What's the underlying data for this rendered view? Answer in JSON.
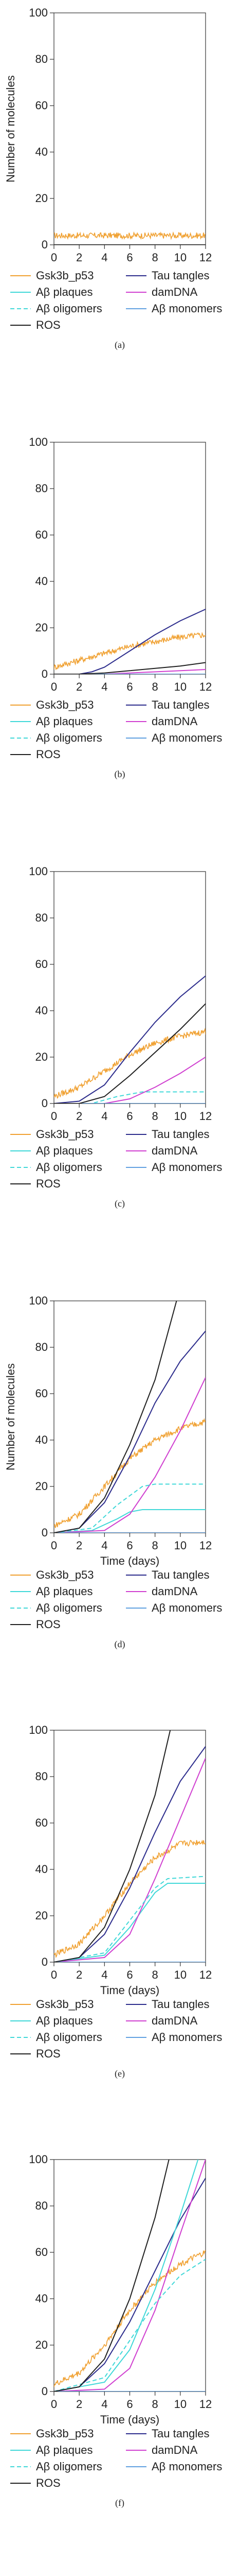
{
  "legend_labels": [
    "Gsk3b_p53",
    "Tau tangles",
    "Aβ plaques",
    "damDNA",
    "Aβ oligomers",
    "Aβ monomers",
    "ROS"
  ],
  "colors": {
    "Gsk3b_p53": "#f0a030",
    "Tau tangles": "#2c2c8c",
    "Aβ plaques": "#40d8d8",
    "damDNA": "#d040d0",
    "Aβ oligomers": "#40d8d8",
    "Aβ monomers": "#60a0e0",
    "ROS": "#202020"
  },
  "chart_data": [
    {
      "type": "line",
      "panel_label": "(a)",
      "ylabel": "Number of molecules",
      "xlabel": "",
      "xlim": [
        0,
        12
      ],
      "ylim": [
        0,
        100
      ],
      "xticks": [
        0,
        2,
        4,
        6,
        8,
        10,
        12
      ],
      "yticks": [
        0,
        20,
        40,
        60,
        80,
        100
      ],
      "series": [
        {
          "name": "Gsk3b_p53",
          "style": "noisy",
          "points": [
            [
              0,
              4
            ],
            [
              12,
              4
            ]
          ]
        },
        {
          "name": "Tau tangles",
          "points": [
            [
              0,
              0
            ],
            [
              12,
              0
            ]
          ]
        },
        {
          "name": "Aβ plaques",
          "points": [
            [
              0,
              0
            ],
            [
              12,
              0
            ]
          ]
        },
        {
          "name": "damDNA",
          "points": [
            [
              0,
              0
            ],
            [
              12,
              0
            ]
          ]
        },
        {
          "name": "Aβ oligomers",
          "dashed": true,
          "points": [
            [
              0,
              0
            ],
            [
              12,
              0
            ]
          ]
        },
        {
          "name": "Aβ monomers",
          "points": [
            [
              0,
              0
            ],
            [
              12,
              0
            ]
          ]
        },
        {
          "name": "ROS",
          "points": [
            [
              0,
              0
            ],
            [
              12,
              0
            ]
          ]
        }
      ]
    },
    {
      "type": "line",
      "panel_label": "(b)",
      "ylabel": "",
      "xlabel": "",
      "xlim": [
        0,
        12
      ],
      "ylim": [
        0,
        100
      ],
      "xticks": [
        0,
        2,
        4,
        6,
        8,
        10,
        12
      ],
      "yticks": [
        0,
        20,
        40,
        60,
        80,
        100
      ],
      "series": [
        {
          "name": "Gsk3b_p53",
          "style": "noisy",
          "points": [
            [
              0,
              3
            ],
            [
              2,
              6
            ],
            [
              4,
              9
            ],
            [
              6,
              12
            ],
            [
              8,
              14
            ],
            [
              10,
              16
            ],
            [
              12,
              17
            ]
          ]
        },
        {
          "name": "Tau tangles",
          "points": [
            [
              0,
              0
            ],
            [
              2,
              0
            ],
            [
              3,
              1
            ],
            [
              4,
              3
            ],
            [
              6,
              10
            ],
            [
              8,
              17
            ],
            [
              10,
              23
            ],
            [
              12,
              28
            ]
          ]
        },
        {
          "name": "Aβ plaques",
          "points": [
            [
              0,
              0
            ],
            [
              12,
              0
            ]
          ]
        },
        {
          "name": "damDNA",
          "points": [
            [
              0,
              0
            ],
            [
              4,
              0
            ],
            [
              8,
              1
            ],
            [
              12,
              2
            ]
          ]
        },
        {
          "name": "Aβ oligomers",
          "dashed": true,
          "points": [
            [
              0,
              0
            ],
            [
              12,
              0
            ]
          ]
        },
        {
          "name": "Aβ monomers",
          "points": [
            [
              0,
              0
            ],
            [
              12,
              0
            ]
          ]
        },
        {
          "name": "ROS",
          "points": [
            [
              0,
              0
            ],
            [
              2,
              0
            ],
            [
              4,
              0.5
            ],
            [
              6,
              1.5
            ],
            [
              8,
              2.5
            ],
            [
              10,
              3.5
            ],
            [
              12,
              5
            ]
          ]
        }
      ]
    },
    {
      "type": "line",
      "panel_label": "(c)",
      "ylabel": "",
      "xlabel": "",
      "xlim": [
        0,
        12
      ],
      "ylim": [
        0,
        100
      ],
      "xticks": [
        0,
        2,
        4,
        6,
        8,
        10,
        12
      ],
      "yticks": [
        0,
        20,
        40,
        60,
        80,
        100
      ],
      "series": [
        {
          "name": "Gsk3b_p53",
          "style": "noisy",
          "points": [
            [
              0,
              3
            ],
            [
              2,
              7
            ],
            [
              4,
              14
            ],
            [
              6,
              21
            ],
            [
              8,
              26
            ],
            [
              10,
              29
            ],
            [
              12,
              31
            ]
          ]
        },
        {
          "name": "Tau tangles",
          "points": [
            [
              0,
              0
            ],
            [
              2,
              1
            ],
            [
              4,
              8
            ],
            [
              6,
              22
            ],
            [
              8,
              35
            ],
            [
              10,
              46
            ],
            [
              12,
              55
            ]
          ]
        },
        {
          "name": "Aβ plaques",
          "points": [
            [
              0,
              0
            ],
            [
              12,
              0
            ]
          ]
        },
        {
          "name": "damDNA",
          "points": [
            [
              0,
              0
            ],
            [
              4,
              0
            ],
            [
              6,
              2
            ],
            [
              8,
              7
            ],
            [
              10,
              13
            ],
            [
              12,
              20
            ]
          ]
        },
        {
          "name": "Aβ oligomers",
          "dashed": true,
          "points": [
            [
              0,
              0
            ],
            [
              3,
              0
            ],
            [
              5,
              3
            ],
            [
              7,
              5
            ],
            [
              12,
              5
            ]
          ]
        },
        {
          "name": "Aβ monomers",
          "points": [
            [
              0,
              0
            ],
            [
              12,
              0
            ]
          ]
        },
        {
          "name": "ROS",
          "points": [
            [
              0,
              0
            ],
            [
              2,
              0
            ],
            [
              4,
              3
            ],
            [
              6,
              12
            ],
            [
              8,
              22
            ],
            [
              10,
              32
            ],
            [
              12,
              43
            ]
          ]
        }
      ]
    },
    {
      "type": "line",
      "panel_label": "(d)",
      "ylabel": "Number of molecules",
      "xlabel": "Time (days)",
      "xlim": [
        0,
        12
      ],
      "ylim": [
        0,
        100
      ],
      "xticks": [
        0,
        2,
        4,
        6,
        8,
        10,
        12
      ],
      "yticks": [
        0,
        20,
        40,
        60,
        80,
        100
      ],
      "series": [
        {
          "name": "Gsk3b_p53",
          "style": "noisy",
          "points": [
            [
              0,
              3
            ],
            [
              2,
              8
            ],
            [
              4,
              20
            ],
            [
              6,
              32
            ],
            [
              8,
              40
            ],
            [
              10,
              45
            ],
            [
              12,
              48
            ]
          ]
        },
        {
          "name": "Tau tangles",
          "points": [
            [
              0,
              0
            ],
            [
              2,
              2
            ],
            [
              4,
              13
            ],
            [
              6,
              33
            ],
            [
              8,
              56
            ],
            [
              10,
              74
            ],
            [
              12,
              87
            ]
          ]
        },
        {
          "name": "Aβ plaques",
          "points": [
            [
              0,
              0
            ],
            [
              3,
              1
            ],
            [
              5,
              6
            ],
            [
              6,
              9
            ],
            [
              7,
              10
            ],
            [
              12,
              10
            ]
          ]
        },
        {
          "name": "damDNA",
          "points": [
            [
              0,
              0
            ],
            [
              4,
              1
            ],
            [
              6,
              8
            ],
            [
              8,
              24
            ],
            [
              10,
              44
            ],
            [
              12,
              67
            ]
          ]
        },
        {
          "name": "Aβ oligomers",
          "dashed": true,
          "points": [
            [
              0,
              0
            ],
            [
              3,
              2
            ],
            [
              5,
              12
            ],
            [
              7,
              20
            ],
            [
              8,
              21
            ],
            [
              12,
              21
            ]
          ]
        },
        {
          "name": "Aβ monomers",
          "points": [
            [
              0,
              0
            ],
            [
              12,
              0
            ]
          ]
        },
        {
          "name": "ROS",
          "points": [
            [
              0,
              0
            ],
            [
              2,
              2
            ],
            [
              4,
              15
            ],
            [
              6,
              38
            ],
            [
              8,
              66
            ],
            [
              9.7,
              100
            ]
          ]
        }
      ]
    },
    {
      "type": "line",
      "panel_label": "(e)",
      "ylabel": "",
      "xlabel": "Time (days)",
      "xlim": [
        0,
        12
      ],
      "ylim": [
        0,
        100
      ],
      "xticks": [
        0,
        2,
        4,
        6,
        8,
        10,
        12
      ],
      "yticks": [
        0,
        20,
        40,
        60,
        80,
        100
      ],
      "series": [
        {
          "name": "Gsk3b_p53",
          "style": "noisy",
          "points": [
            [
              0,
              3
            ],
            [
              2,
              8
            ],
            [
              4,
              20
            ],
            [
              6,
              34
            ],
            [
              8,
              45
            ],
            [
              10,
              51
            ],
            [
              12,
              52
            ]
          ]
        },
        {
          "name": "Tau tangles",
          "points": [
            [
              0,
              0
            ],
            [
              2,
              2
            ],
            [
              4,
              12
            ],
            [
              6,
              32
            ],
            [
              8,
              56
            ],
            [
              10,
              78
            ],
            [
              12,
              93
            ]
          ]
        },
        {
          "name": "Aβ plaques",
          "points": [
            [
              0,
              0
            ],
            [
              4,
              3
            ],
            [
              6,
              15
            ],
            [
              8,
              30
            ],
            [
              9,
              34
            ],
            [
              12,
              34
            ]
          ]
        },
        {
          "name": "damDNA",
          "points": [
            [
              0,
              0
            ],
            [
              4,
              2
            ],
            [
              6,
              12
            ],
            [
              8,
              36
            ],
            [
              10,
              62
            ],
            [
              12,
              88
            ]
          ]
        },
        {
          "name": "Aβ oligomers",
          "dashed": true,
          "points": [
            [
              0,
              0
            ],
            [
              4,
              4
            ],
            [
              6,
              18
            ],
            [
              8,
              32
            ],
            [
              9,
              36
            ],
            [
              12,
              37
            ]
          ]
        },
        {
          "name": "Aβ monomers",
          "points": [
            [
              0,
              0
            ],
            [
              12,
              0
            ]
          ]
        },
        {
          "name": "ROS",
          "points": [
            [
              0,
              0
            ],
            [
              2,
              2
            ],
            [
              4,
              15
            ],
            [
              6,
              40
            ],
            [
              8,
              72
            ],
            [
              9.2,
              100
            ]
          ]
        }
      ]
    },
    {
      "type": "line",
      "panel_label": "(f)",
      "ylabel": "",
      "xlabel": "Time (days)",
      "xlim": [
        0,
        12
      ],
      "ylim": [
        0,
        100
      ],
      "xticks": [
        0,
        2,
        4,
        6,
        8,
        10,
        12
      ],
      "yticks": [
        0,
        20,
        40,
        60,
        80,
        100
      ],
      "series": [
        {
          "name": "Gsk3b_p53",
          "style": "noisy",
          "points": [
            [
              0,
              3
            ],
            [
              2,
              8
            ],
            [
              4,
              20
            ],
            [
              6,
              35
            ],
            [
              8,
              47
            ],
            [
              10,
              55
            ],
            [
              12,
              60
            ]
          ]
        },
        {
          "name": "Tau tangles",
          "points": [
            [
              0,
              0
            ],
            [
              2,
              2
            ],
            [
              4,
              12
            ],
            [
              6,
              30
            ],
            [
              8,
              52
            ],
            [
              10,
              74
            ],
            [
              12,
              92
            ]
          ]
        },
        {
          "name": "Aβ plaques",
          "points": [
            [
              0,
              0
            ],
            [
              4,
              4
            ],
            [
              6,
              18
            ],
            [
              8,
              44
            ],
            [
              10,
              76
            ],
            [
              11.4,
              100
            ]
          ]
        },
        {
          "name": "damDNA",
          "points": [
            [
              0,
              0
            ],
            [
              4,
              1
            ],
            [
              6,
              10
            ],
            [
              8,
              35
            ],
            [
              10,
              68
            ],
            [
              12,
              100
            ]
          ]
        },
        {
          "name": "Aβ oligomers",
          "dashed": true,
          "points": [
            [
              0,
              0
            ],
            [
              4,
              6
            ],
            [
              6,
              22
            ],
            [
              8,
              38
            ],
            [
              10,
              50
            ],
            [
              12,
              57
            ]
          ]
        },
        {
          "name": "Aβ monomers",
          "points": [
            [
              0,
              0
            ],
            [
              12,
              0
            ]
          ]
        },
        {
          "name": "ROS",
          "points": [
            [
              0,
              0
            ],
            [
              2,
              2
            ],
            [
              4,
              14
            ],
            [
              6,
              40
            ],
            [
              8,
              75
            ],
            [
              9.1,
              100
            ]
          ]
        }
      ]
    }
  ]
}
